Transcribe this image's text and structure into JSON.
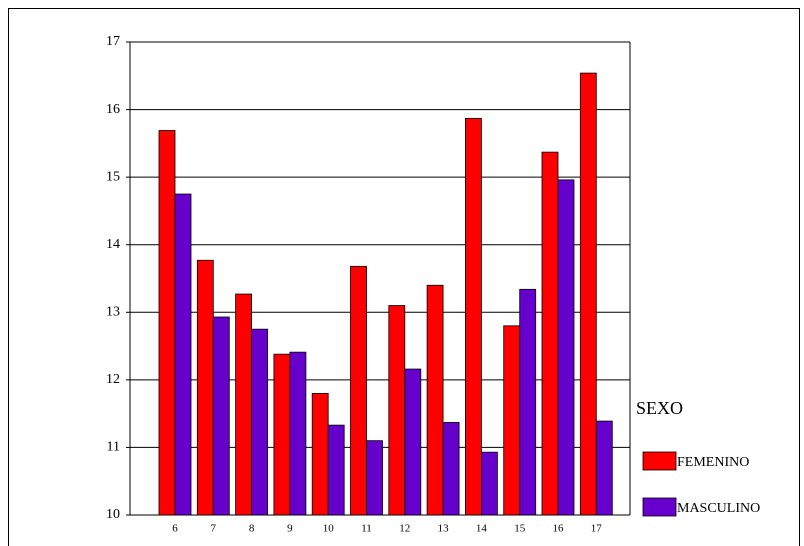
{
  "chart_data": {
    "type": "bar",
    "categories": [
      "6",
      "7",
      "8",
      "9",
      "10",
      "11",
      "12",
      "13",
      "14",
      "15",
      "16",
      "17"
    ],
    "series": [
      {
        "name": "FEMENINO",
        "color": "#ff0000",
        "values": [
          15.69,
          13.77,
          13.27,
          12.38,
          11.8,
          13.68,
          13.1,
          13.4,
          15.87,
          12.8,
          15.37,
          16.54
        ]
      },
      {
        "name": "MASCULINO",
        "color": "#6600cc",
        "values": [
          14.75,
          12.93,
          12.75,
          12.41,
          11.33,
          11.1,
          12.16,
          11.37,
          10.93,
          13.34,
          14.96,
          11.39
        ]
      }
    ],
    "legend_title": "SEXO",
    "ylim": [
      10,
      17
    ],
    "yticks": [
      10,
      11,
      12,
      13,
      14,
      15,
      16,
      17
    ],
    "grid": true
  }
}
